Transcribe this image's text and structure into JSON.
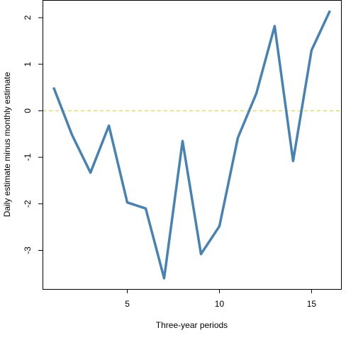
{
  "chart_data": {
    "type": "line",
    "title": "",
    "xlabel": "Three-year periods",
    "ylabel": "Daily estimate minus monthly estimate",
    "xlim": [
      0.4,
      16.6
    ],
    "ylim": [
      -3.83,
      2.38
    ],
    "x_ticks": [
      5,
      10,
      15
    ],
    "y_ticks": [
      -3,
      -2,
      -1,
      0,
      1,
      2
    ],
    "grid": false,
    "legend": "none",
    "series": [
      {
        "x": [
          1,
          2,
          3,
          4,
          5,
          6,
          7,
          8,
          9,
          10,
          11,
          12,
          13,
          14,
          15,
          16
        ],
        "values": [
          0.5,
          -0.52,
          -1.33,
          -0.32,
          -1.97,
          -2.1,
          -3.6,
          -0.65,
          -3.08,
          -2.48,
          -0.58,
          0.37,
          1.82,
          -1.08,
          1.3,
          2.15
        ],
        "color": "#4682b4"
      }
    ],
    "reference_line": {
      "y": 0,
      "color": "#e8d44d",
      "style": "dashed"
    }
  }
}
